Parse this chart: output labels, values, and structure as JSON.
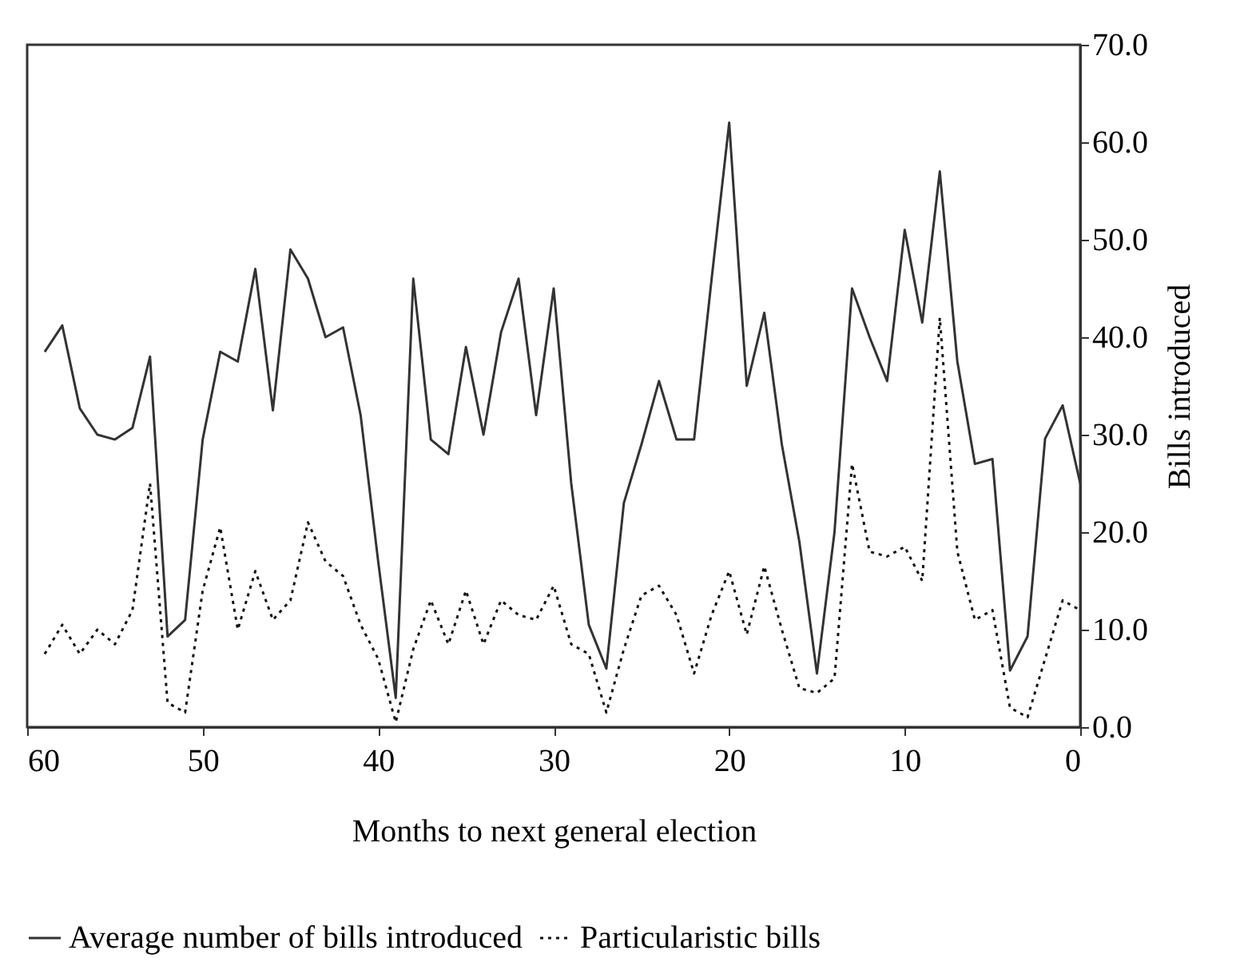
{
  "chart_data": {
    "type": "line",
    "xlabel": "Months to next general election",
    "ylabel": "Bills introduced",
    "x": [
      59,
      58,
      57,
      56,
      55,
      54,
      53,
      52,
      51,
      50,
      49,
      48,
      47,
      46,
      45,
      44,
      43,
      42,
      41,
      40,
      39,
      38,
      37,
      36,
      35,
      34,
      33,
      32,
      31,
      30,
      29,
      28,
      27,
      26,
      25,
      24,
      23,
      22,
      21,
      20,
      19,
      18,
      17,
      16,
      15,
      14,
      13,
      12,
      11,
      10,
      9,
      8,
      7,
      6,
      5,
      4,
      3,
      2,
      1,
      0
    ],
    "series": [
      {
        "name": "Average number of bills introduced",
        "color": "#333333",
        "line_style": "solid",
        "values": [
          38.5,
          41.2,
          32.7,
          30,
          29.5,
          30.7,
          38,
          9.3,
          11,
          29.5,
          38.5,
          37.5,
          47,
          32.5,
          49,
          46,
          40,
          41,
          32,
          17,
          3,
          46,
          29.5,
          28,
          39,
          30,
          40.5,
          46,
          32,
          45,
          25,
          10.5,
          6,
          23,
          29,
          35.5,
          29.5,
          29.5,
          46,
          62,
          35,
          42.5,
          29,
          19,
          5.5,
          20,
          45,
          40,
          35.5,
          51,
          41.5,
          57,
          37.5,
          27,
          27.5,
          5.8,
          9.3,
          29.6,
          33,
          25
        ]
      },
      {
        "name": "Particularistic bills",
        "color": "#111111",
        "line_style": "dotted",
        "values": [
          7.5,
          10.5,
          7.5,
          10,
          8.5,
          12,
          25,
          2.5,
          1.5,
          14,
          20.5,
          10,
          16,
          11,
          13,
          21,
          17,
          15.5,
          10.5,
          7,
          0.5,
          8,
          13,
          8.5,
          14,
          8.5,
          13,
          11.5,
          11,
          14.5,
          8.5,
          7.5,
          1.5,
          8,
          13.5,
          14.5,
          11.5,
          5.5,
          11.5,
          16,
          9.5,
          16.5,
          10,
          4,
          3.5,
          5,
          27,
          18,
          17.5,
          18.5,
          15,
          42,
          18,
          11,
          12,
          2,
          1,
          7,
          13,
          12
        ]
      }
    ],
    "xlim": [
      60,
      0
    ],
    "xticks": [
      60,
      50,
      40,
      30,
      20,
      10,
      0
    ],
    "ylim": [
      0,
      70
    ],
    "yticks": [
      {
        "value": 0,
        "label": "0.0"
      },
      {
        "value": 10,
        "label": "10.0"
      },
      {
        "value": 20,
        "label": "20.0"
      },
      {
        "value": 30,
        "label": "30.0"
      },
      {
        "value": 40,
        "label": "40.0"
      },
      {
        "value": 50,
        "label": "50.0"
      },
      {
        "value": 60,
        "label": "60.0"
      },
      {
        "value": 70,
        "label": "70.0"
      }
    ],
    "grid": false,
    "legend": "bottom",
    "marker": "none"
  }
}
